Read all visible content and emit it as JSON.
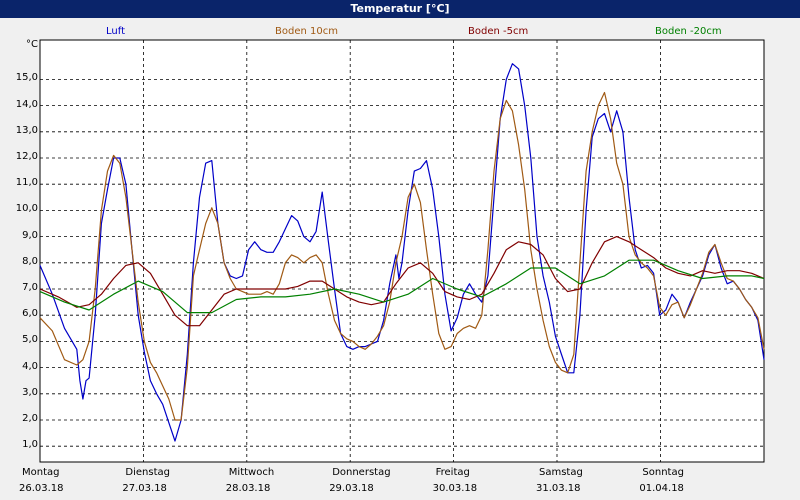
{
  "window_title": "Temperatur [°C]",
  "chart_data": {
    "type": "line",
    "unit": "°C",
    "ylim": [
      0,
      16
    ],
    "yticks": [
      "1,0",
      "2,0",
      "3,0",
      "4,0",
      "5,0",
      "6,0",
      "7,0",
      "8,0",
      "9,0",
      "10,0",
      "11,0",
      "12,0",
      "13,0",
      "14,0",
      "15,0"
    ],
    "days": [
      {
        "day": "Montag",
        "date": "26.03.18"
      },
      {
        "day": "Dienstag",
        "date": "27.03.18"
      },
      {
        "day": "Mittwoch",
        "date": "28.03.18"
      },
      {
        "day": "Donnerstag",
        "date": "29.03.18"
      },
      {
        "day": "Freitag",
        "date": "30.03.18"
      },
      {
        "day": "Samstag",
        "date": "31.03.18"
      },
      {
        "day": "Sonntag",
        "date": "01.04.18"
      }
    ],
    "grid": true,
    "series": [
      {
        "name": "Luft",
        "color": "#0000c8",
        "values": [
          [
            0,
            7.9
          ],
          [
            2,
            6.8
          ],
          [
            4,
            5.5
          ],
          [
            6,
            4.7
          ],
          [
            6.5,
            3.5
          ],
          [
            7,
            2.8
          ],
          [
            7.5,
            3.5
          ],
          [
            8,
            3.6
          ],
          [
            9,
            6.0
          ],
          [
            10,
            9.5
          ],
          [
            11,
            10.8
          ],
          [
            12,
            12.0
          ],
          [
            13,
            12.0
          ],
          [
            14,
            11.0
          ],
          [
            15,
            8.5
          ],
          [
            16,
            6.0
          ],
          [
            17,
            4.6
          ],
          [
            18,
            3.5
          ],
          [
            19,
            3.0
          ],
          [
            20,
            2.6
          ],
          [
            21,
            1.9
          ],
          [
            22,
            1.2
          ],
          [
            23,
            2.0
          ],
          [
            24,
            4.5
          ],
          [
            25,
            8.0
          ],
          [
            26,
            10.5
          ],
          [
            27,
            11.8
          ],
          [
            28,
            11.9
          ],
          [
            29,
            9.5
          ],
          [
            30,
            8.0
          ],
          [
            31,
            7.5
          ],
          [
            32,
            7.4
          ],
          [
            33,
            7.5
          ],
          [
            34,
            8.5
          ],
          [
            35,
            8.8
          ],
          [
            36,
            8.5
          ],
          [
            37,
            8.4
          ],
          [
            38,
            8.4
          ],
          [
            39,
            8.8
          ],
          [
            40,
            9.3
          ],
          [
            41,
            9.8
          ],
          [
            42,
            9.6
          ],
          [
            43,
            9.0
          ],
          [
            44,
            8.8
          ],
          [
            45,
            9.2
          ],
          [
            46,
            10.7
          ],
          [
            47,
            8.8
          ],
          [
            48,
            7.0
          ],
          [
            49,
            5.3
          ],
          [
            50,
            4.8
          ],
          [
            51,
            4.7
          ],
          [
            52,
            4.8
          ],
          [
            53,
            4.8
          ],
          [
            54,
            4.9
          ],
          [
            55,
            5.0
          ],
          [
            56,
            5.8
          ],
          [
            57,
            7.2
          ],
          [
            58,
            8.3
          ],
          [
            58.5,
            7.4
          ],
          [
            59,
            8.0
          ],
          [
            60,
            10.0
          ],
          [
            61,
            11.5
          ],
          [
            62,
            11.6
          ],
          [
            63,
            11.9
          ],
          [
            64,
            10.8
          ],
          [
            65,
            9.0
          ],
          [
            66,
            6.8
          ],
          [
            67,
            5.4
          ],
          [
            68,
            5.9
          ],
          [
            69,
            6.8
          ],
          [
            70,
            7.2
          ],
          [
            71,
            6.8
          ],
          [
            72,
            6.5
          ],
          [
            73,
            7.5
          ],
          [
            74,
            10.5
          ],
          [
            75,
            13.5
          ],
          [
            76,
            15.0
          ],
          [
            77,
            15.6
          ],
          [
            78,
            15.4
          ],
          [
            79,
            14.0
          ],
          [
            80,
            12.0
          ],
          [
            81,
            9.0
          ],
          [
            82,
            7.5
          ],
          [
            83,
            6.5
          ],
          [
            84,
            5.2
          ],
          [
            85,
            4.5
          ],
          [
            86,
            3.8
          ],
          [
            87,
            3.8
          ],
          [
            88,
            6.0
          ],
          [
            89,
            10.0
          ],
          [
            90,
            12.8
          ],
          [
            91,
            13.5
          ],
          [
            92,
            13.7
          ],
          [
            93,
            13.0
          ],
          [
            94,
            13.8
          ],
          [
            95,
            13.0
          ],
          [
            96,
            10.5
          ],
          [
            97,
            8.5
          ],
          [
            98,
            7.8
          ],
          [
            99,
            7.9
          ],
          [
            100,
            7.6
          ],
          [
            101,
            6.0
          ],
          [
            102,
            6.2
          ],
          [
            103,
            6.8
          ],
          [
            104,
            6.5
          ],
          [
            105,
            5.9
          ],
          [
            106,
            6.5
          ],
          [
            107,
            7.0
          ],
          [
            108,
            7.5
          ],
          [
            109,
            8.3
          ],
          [
            110,
            8.7
          ],
          [
            111,
            7.8
          ],
          [
            112,
            7.2
          ],
          [
            113,
            7.3
          ],
          [
            114,
            7.0
          ],
          [
            115,
            6.6
          ],
          [
            116,
            6.3
          ],
          [
            117,
            5.8
          ],
          [
            118,
            4.3
          ]
        ]
      },
      {
        "name": "Boden 10cm",
        "color": "#a05a14",
        "values": [
          [
            0,
            5.9
          ],
          [
            2,
            5.4
          ],
          [
            4,
            4.3
          ],
          [
            6,
            4.1
          ],
          [
            7,
            4.3
          ],
          [
            8,
            5.0
          ],
          [
            9,
            7.0
          ],
          [
            10,
            10.0
          ],
          [
            11,
            11.5
          ],
          [
            12,
            12.1
          ],
          [
            13,
            11.8
          ],
          [
            14,
            10.5
          ],
          [
            15,
            8.5
          ],
          [
            16,
            6.5
          ],
          [
            17,
            5.0
          ],
          [
            18,
            4.2
          ],
          [
            19,
            3.8
          ],
          [
            20,
            3.3
          ],
          [
            21,
            2.8
          ],
          [
            22,
            2.0
          ],
          [
            23,
            2.0
          ],
          [
            24,
            4.0
          ],
          [
            25,
            7.5
          ],
          [
            26,
            8.5
          ],
          [
            27,
            9.5
          ],
          [
            28,
            10.1
          ],
          [
            29,
            9.5
          ],
          [
            30,
            8.0
          ],
          [
            31,
            7.4
          ],
          [
            32,
            7.0
          ],
          [
            33,
            6.9
          ],
          [
            34,
            6.8
          ],
          [
            35,
            6.8
          ],
          [
            36,
            6.8
          ],
          [
            37,
            6.9
          ],
          [
            38,
            6.8
          ],
          [
            39,
            7.2
          ],
          [
            40,
            8.0
          ],
          [
            41,
            8.3
          ],
          [
            42,
            8.2
          ],
          [
            43,
            8.0
          ],
          [
            44,
            8.2
          ],
          [
            45,
            8.3
          ],
          [
            46,
            8.0
          ],
          [
            47,
            6.8
          ],
          [
            48,
            5.8
          ],
          [
            49,
            5.3
          ],
          [
            50,
            5.1
          ],
          [
            51,
            5.0
          ],
          [
            52,
            4.8
          ],
          [
            53,
            4.7
          ],
          [
            54,
            4.9
          ],
          [
            55,
            5.2
          ],
          [
            56,
            5.6
          ],
          [
            57,
            6.5
          ],
          [
            58,
            8.0
          ],
          [
            59,
            9.0
          ],
          [
            60,
            10.5
          ],
          [
            61,
            11.0
          ],
          [
            62,
            10.3
          ],
          [
            63,
            8.5
          ],
          [
            64,
            6.8
          ],
          [
            65,
            5.3
          ],
          [
            66,
            4.7
          ],
          [
            67,
            4.8
          ],
          [
            68,
            5.3
          ],
          [
            69,
            5.5
          ],
          [
            70,
            5.6
          ],
          [
            71,
            5.5
          ],
          [
            72,
            6.0
          ],
          [
            73,
            8.5
          ],
          [
            74,
            11.5
          ],
          [
            75,
            13.5
          ],
          [
            76,
            14.2
          ],
          [
            77,
            13.8
          ],
          [
            78,
            12.5
          ],
          [
            79,
            10.8
          ],
          [
            80,
            8.5
          ],
          [
            81,
            7.0
          ],
          [
            82,
            5.8
          ],
          [
            83,
            4.8
          ],
          [
            84,
            4.2
          ],
          [
            85,
            3.9
          ],
          [
            86,
            3.8
          ],
          [
            87,
            4.5
          ],
          [
            88,
            8.0
          ],
          [
            89,
            11.5
          ],
          [
            90,
            13.0
          ],
          [
            91,
            14.0
          ],
          [
            92,
            14.5
          ],
          [
            93,
            13.5
          ],
          [
            94,
            11.8
          ],
          [
            95,
            11.0
          ],
          [
            96,
            9.0
          ],
          [
            97,
            8.3
          ],
          [
            98,
            8.0
          ],
          [
            99,
            7.8
          ],
          [
            100,
            7.5
          ],
          [
            101,
            6.3
          ],
          [
            102,
            6.0
          ],
          [
            103,
            6.4
          ],
          [
            104,
            6.5
          ],
          [
            105,
            5.9
          ],
          [
            106,
            6.4
          ],
          [
            107,
            7.0
          ],
          [
            108,
            7.6
          ],
          [
            109,
            8.4
          ],
          [
            110,
            8.7
          ],
          [
            111,
            8.0
          ],
          [
            112,
            7.4
          ],
          [
            113,
            7.3
          ],
          [
            114,
            7.0
          ],
          [
            115,
            6.6
          ],
          [
            116,
            6.3
          ],
          [
            117,
            5.9
          ],
          [
            118,
            4.7
          ]
        ]
      },
      {
        "name": "Boden -5cm",
        "color": "#800000",
        "values": [
          [
            0,
            7.0
          ],
          [
            3,
            6.7
          ],
          [
            6,
            6.3
          ],
          [
            8,
            6.4
          ],
          [
            10,
            6.8
          ],
          [
            12,
            7.4
          ],
          [
            14,
            7.9
          ],
          [
            16,
            8.0
          ],
          [
            18,
            7.6
          ],
          [
            20,
            6.8
          ],
          [
            22,
            6.0
          ],
          [
            24,
            5.6
          ],
          [
            26,
            5.6
          ],
          [
            28,
            6.2
          ],
          [
            30,
            6.8
          ],
          [
            32,
            7.0
          ],
          [
            34,
            7.0
          ],
          [
            36,
            7.0
          ],
          [
            38,
            7.0
          ],
          [
            40,
            7.0
          ],
          [
            42,
            7.1
          ],
          [
            44,
            7.3
          ],
          [
            46,
            7.3
          ],
          [
            48,
            7.0
          ],
          [
            50,
            6.7
          ],
          [
            52,
            6.5
          ],
          [
            54,
            6.4
          ],
          [
            56,
            6.5
          ],
          [
            58,
            7.2
          ],
          [
            60,
            7.8
          ],
          [
            62,
            8.0
          ],
          [
            64,
            7.6
          ],
          [
            66,
            6.9
          ],
          [
            68,
            6.7
          ],
          [
            70,
            6.6
          ],
          [
            72,
            6.8
          ],
          [
            74,
            7.6
          ],
          [
            76,
            8.5
          ],
          [
            78,
            8.8
          ],
          [
            80,
            8.7
          ],
          [
            82,
            8.3
          ],
          [
            84,
            7.4
          ],
          [
            86,
            6.9
          ],
          [
            88,
            7.0
          ],
          [
            90,
            8.0
          ],
          [
            92,
            8.8
          ],
          [
            94,
            9.0
          ],
          [
            96,
            8.8
          ],
          [
            98,
            8.5
          ],
          [
            100,
            8.2
          ],
          [
            102,
            7.8
          ],
          [
            104,
            7.6
          ],
          [
            106,
            7.5
          ],
          [
            108,
            7.7
          ],
          [
            110,
            7.6
          ],
          [
            112,
            7.7
          ],
          [
            114,
            7.7
          ],
          [
            116,
            7.6
          ],
          [
            118,
            7.4
          ]
        ]
      },
      {
        "name": "Boden -20cm",
        "color": "#008000",
        "values": [
          [
            0,
            6.9
          ],
          [
            4,
            6.5
          ],
          [
            8,
            6.2
          ],
          [
            12,
            6.8
          ],
          [
            16,
            7.3
          ],
          [
            20,
            6.9
          ],
          [
            24,
            6.1
          ],
          [
            28,
            6.1
          ],
          [
            32,
            6.6
          ],
          [
            36,
            6.7
          ],
          [
            40,
            6.7
          ],
          [
            44,
            6.8
          ],
          [
            48,
            7.0
          ],
          [
            52,
            6.8
          ],
          [
            56,
            6.5
          ],
          [
            60,
            6.8
          ],
          [
            64,
            7.4
          ],
          [
            68,
            7.0
          ],
          [
            72,
            6.7
          ],
          [
            76,
            7.2
          ],
          [
            80,
            7.8
          ],
          [
            84,
            7.8
          ],
          [
            88,
            7.2
          ],
          [
            92,
            7.5
          ],
          [
            96,
            8.1
          ],
          [
            100,
            8.1
          ],
          [
            104,
            7.7
          ],
          [
            108,
            7.4
          ],
          [
            112,
            7.5
          ],
          [
            116,
            7.5
          ],
          [
            118,
            7.4
          ]
        ]
      }
    ]
  }
}
